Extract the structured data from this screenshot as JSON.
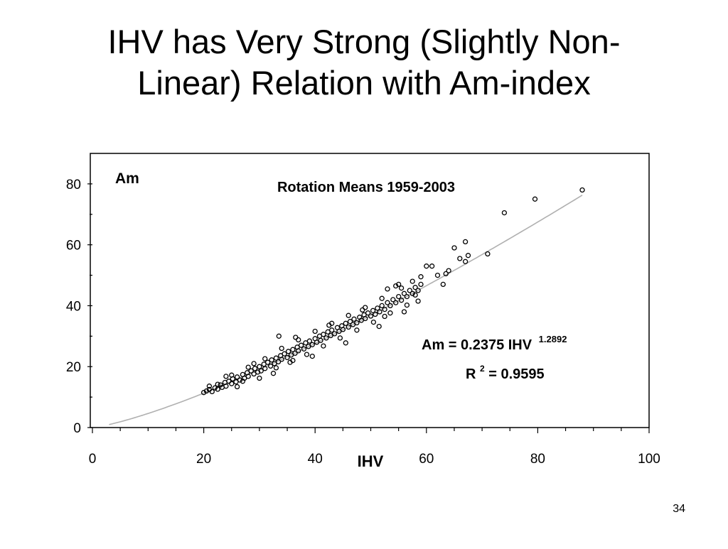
{
  "slide": {
    "title_line1": "IHV has Very Strong (Slightly Non-",
    "title_line2": "Linear) Relation with Am-index",
    "page_number": "34"
  },
  "chart_data": {
    "type": "scatter",
    "title": "Rotation Means 1959-2003",
    "xlabel": "IHV",
    "ylabel": "Am",
    "xlim": [
      0,
      100
    ],
    "ylim": [
      0,
      90
    ],
    "xticks": [
      0,
      20,
      40,
      60,
      80,
      100
    ],
    "yticks": [
      0,
      20,
      40,
      60,
      80
    ],
    "grid": false,
    "legend": "none",
    "colors": {
      "points": "#000000",
      "fit_line": "#b0b0b0",
      "frame": "#000000"
    },
    "annotation_equation": "Am = 0.2375 IHV",
    "annotation_exponent": "1.2892",
    "annotation_r2_prefix": "R",
    "annotation_r2_power": "2",
    "annotation_r2_value": " = 0.9595",
    "fit": {
      "coefficient": 0.2375,
      "exponent": 1.2892,
      "x_range": [
        3,
        88
      ]
    },
    "series": [
      {
        "points": [
          [
            20.0,
            11.5
          ],
          [
            20.5,
            12.0
          ],
          [
            21.0,
            12.5
          ],
          [
            21.5,
            11.8
          ],
          [
            22.0,
            13.0
          ],
          [
            22.5,
            12.6
          ],
          [
            23.0,
            14.0
          ],
          [
            23.3,
            13.2
          ],
          [
            23.8,
            14.8
          ],
          [
            24.0,
            13.6
          ],
          [
            24.5,
            15.2
          ],
          [
            25.0,
            14.4
          ],
          [
            25.2,
            16.0
          ],
          [
            25.8,
            15.0
          ],
          [
            26.0,
            16.6
          ],
          [
            26.5,
            15.6
          ],
          [
            27.0,
            17.4
          ],
          [
            27.3,
            16.2
          ],
          [
            27.8,
            18.0
          ],
          [
            28.0,
            16.8
          ],
          [
            28.5,
            18.6
          ],
          [
            29.0,
            17.6
          ],
          [
            29.2,
            19.4
          ],
          [
            29.7,
            18.2
          ],
          [
            30.0,
            20.0
          ],
          [
            30.3,
            18.6
          ],
          [
            30.8,
            20.8
          ],
          [
            31.0,
            19.4
          ],
          [
            31.5,
            21.4
          ],
          [
            32.0,
            20.2
          ],
          [
            32.2,
            22.2
          ],
          [
            32.7,
            21.0
          ],
          [
            33.0,
            22.8
          ],
          [
            33.4,
            21.6
          ],
          [
            33.8,
            23.6
          ],
          [
            34.0,
            22.4
          ],
          [
            34.5,
            24.2
          ],
          [
            35.0,
            23.0
          ],
          [
            35.2,
            25.0
          ],
          [
            35.7,
            23.8
          ],
          [
            36.0,
            25.6
          ],
          [
            36.4,
            24.4
          ],
          [
            36.8,
            26.4
          ],
          [
            37.0,
            25.2
          ],
          [
            37.5,
            27.0
          ],
          [
            38.0,
            25.8
          ],
          [
            38.3,
            27.8
          ],
          [
            38.8,
            26.6
          ],
          [
            39.0,
            28.4
          ],
          [
            39.5,
            27.2
          ],
          [
            40.0,
            29.2
          ],
          [
            40.3,
            28.0
          ],
          [
            40.8,
            30.0
          ],
          [
            41.0,
            28.6
          ],
          [
            41.5,
            30.6
          ],
          [
            42.0,
            29.4
          ],
          [
            42.3,
            31.4
          ],
          [
            42.8,
            30.2
          ],
          [
            43.0,
            32.0
          ],
          [
            43.5,
            30.8
          ],
          [
            44.0,
            32.8
          ],
          [
            44.3,
            31.6
          ],
          [
            44.8,
            33.4
          ],
          [
            45.0,
            32.2
          ],
          [
            45.5,
            34.2
          ],
          [
            46.0,
            33.0
          ],
          [
            46.3,
            34.8
          ],
          [
            46.8,
            33.8
          ],
          [
            47.0,
            35.6
          ],
          [
            47.5,
            34.4
          ],
          [
            48.0,
            36.2
          ],
          [
            48.3,
            35.2
          ],
          [
            48.8,
            37.0
          ],
          [
            49.0,
            35.8
          ],
          [
            49.5,
            37.6
          ],
          [
            50.0,
            36.6
          ],
          [
            50.4,
            38.4
          ],
          [
            50.8,
            37.2
          ],
          [
            51.2,
            39.2
          ],
          [
            51.6,
            38.0
          ],
          [
            52.0,
            40.0
          ],
          [
            52.5,
            38.8
          ],
          [
            53.0,
            41.0
          ],
          [
            53.5,
            40.0
          ],
          [
            54.0,
            42.0
          ],
          [
            54.5,
            41.0
          ],
          [
            55.0,
            43.0
          ],
          [
            55.5,
            41.8
          ],
          [
            56.0,
            44.0
          ],
          [
            56.5,
            43.0
          ],
          [
            57.0,
            45.0
          ],
          [
            57.5,
            44.0
          ],
          [
            58.0,
            46.0
          ],
          [
            58.5,
            45.0
          ],
          [
            59.0,
            47.0
          ],
          [
            24.0,
            16.8
          ],
          [
            26.0,
            13.4
          ],
          [
            28.0,
            19.8
          ],
          [
            30.0,
            16.2
          ],
          [
            31.0,
            22.6
          ],
          [
            33.0,
            19.6
          ],
          [
            34.0,
            26.0
          ],
          [
            35.5,
            21.4
          ],
          [
            37.0,
            28.8
          ],
          [
            38.5,
            24.0
          ],
          [
            40.0,
            31.6
          ],
          [
            41.5,
            26.8
          ],
          [
            43.0,
            34.2
          ],
          [
            44.5,
            29.4
          ],
          [
            46.0,
            36.8
          ],
          [
            47.5,
            32.0
          ],
          [
            49.0,
            39.4
          ],
          [
            50.5,
            34.6
          ],
          [
            52.0,
            42.4
          ],
          [
            53.5,
            37.6
          ],
          [
            55.5,
            45.8
          ],
          [
            56.5,
            40.2
          ],
          [
            29.0,
            21.0
          ],
          [
            32.5,
            17.8
          ],
          [
            36.5,
            29.6
          ],
          [
            39.5,
            23.4
          ],
          [
            42.5,
            33.6
          ],
          [
            45.5,
            27.8
          ],
          [
            48.5,
            38.6
          ],
          [
            51.5,
            33.2
          ],
          [
            33.5,
            30.0
          ],
          [
            36.0,
            22.0
          ],
          [
            27.0,
            15.2
          ],
          [
            25.0,
            17.2
          ],
          [
            22.5,
            14.2
          ],
          [
            21.0,
            13.6
          ],
          [
            57.5,
            48.0
          ],
          [
            59.0,
            49.5
          ],
          [
            60.0,
            53.0
          ],
          [
            61.0,
            53.0
          ],
          [
            62.0,
            50.0
          ],
          [
            63.0,
            47.0
          ],
          [
            63.5,
            50.5
          ],
          [
            64.0,
            51.5
          ],
          [
            65.0,
            59.0
          ],
          [
            66.0,
            55.5
          ],
          [
            67.0,
            54.5
          ],
          [
            67.5,
            56.5
          ],
          [
            67.0,
            61.0
          ],
          [
            71.0,
            57.0
          ],
          [
            74.0,
            70.5
          ],
          [
            79.5,
            75.0
          ],
          [
            88.0,
            78.0
          ],
          [
            58.5,
            41.5
          ],
          [
            56.0,
            38.0
          ],
          [
            54.5,
            46.5
          ],
          [
            53.0,
            45.5
          ],
          [
            52.5,
            36.5
          ],
          [
            55.0,
            47.0
          ],
          [
            58.0,
            43.5
          ]
        ]
      }
    ]
  }
}
